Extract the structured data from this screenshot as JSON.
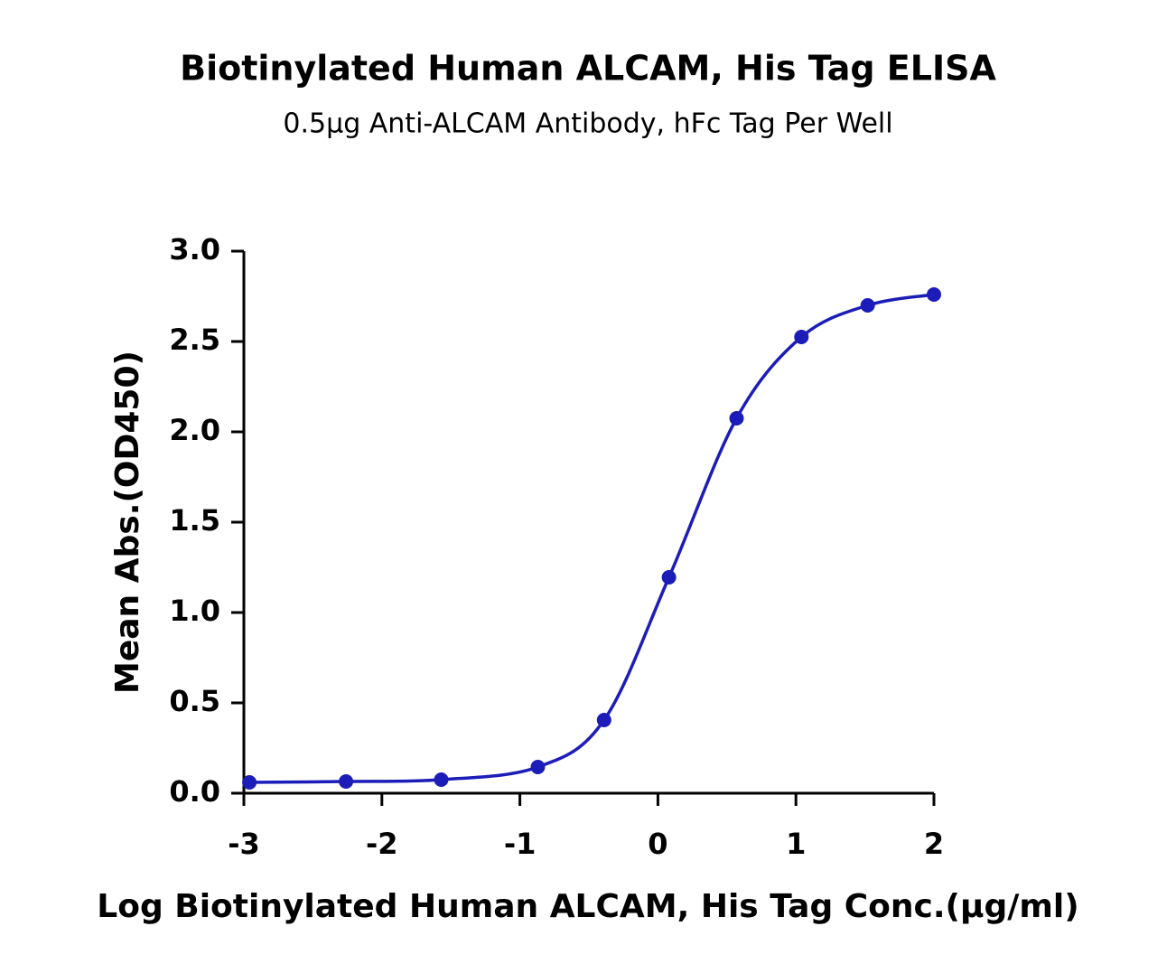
{
  "chart_data": {
    "type": "line",
    "title": "Biotinylated Human ALCAM, His Tag ELISA",
    "subtitle": "0.5μg Anti-ALCAM Antibody, hFc Tag Per Well",
    "x_label": "Log Biotinylated Human ALCAM, His Tag Conc.(μg/ml)",
    "y_label": "Mean Abs.(OD450)",
    "x": [
      -2.96,
      -2.26,
      -1.57,
      -0.87,
      -0.39,
      0.08,
      0.57,
      1.04,
      1.52,
      2.0
    ],
    "series": [
      {
        "color": "#1c1cb8",
        "values": [
          0.06,
          0.065,
          0.075,
          0.145,
          0.405,
          1.195,
          2.075,
          2.525,
          2.7,
          2.76
        ]
      }
    ],
    "xlim": [
      -3,
      2
    ],
    "xticks": [
      -3,
      -2,
      -1,
      0,
      1,
      2
    ],
    "ylim": [
      0,
      3
    ],
    "yticks": [
      {
        "value": 0,
        "label": "0.0"
      },
      {
        "value": 0.5,
        "label": "0.5"
      },
      {
        "value": 1,
        "label": "1.0"
      },
      {
        "value": 1.5,
        "label": "1.5"
      },
      {
        "value": 2,
        "label": "2.0"
      },
      {
        "value": 2.5,
        "label": "2.5"
      },
      {
        "value": 3,
        "label": "3.0"
      }
    ]
  }
}
